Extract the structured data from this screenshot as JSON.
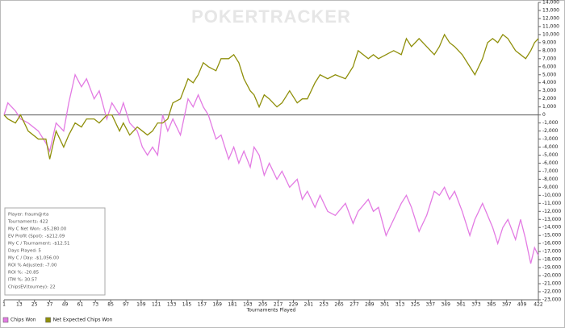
{
  "chart_data": {
    "type": "line",
    "watermark": "POKERTRACKER",
    "x_label": "Tournaments Played",
    "x": [
      1,
      4,
      10,
      14,
      20,
      28,
      34,
      37,
      42,
      48,
      52,
      57,
      62,
      66,
      72,
      76,
      82,
      86,
      92,
      95,
      100,
      106,
      110,
      114,
      118,
      122,
      126,
      130,
      134,
      140,
      146,
      150,
      154,
      158,
      162,
      168,
      172,
      178,
      182,
      186,
      190,
      195,
      198,
      202,
      206,
      210,
      216,
      220,
      226,
      232,
      236,
      240,
      246,
      250,
      256,
      262,
      270,
      276,
      280,
      288,
      292,
      296,
      302,
      308,
      314,
      318,
      322,
      328,
      334,
      340,
      344,
      348,
      352,
      356,
      362,
      368,
      372,
      378,
      382,
      386,
      390,
      394,
      398,
      404,
      408,
      412,
      416,
      419,
      422
    ],
    "series": [
      {
        "name": "Chips Won",
        "color": "#e37be3",
        "values": [
          0,
          1500,
          500,
          -500,
          -1000,
          -2000,
          -3500,
          -4500,
          -1000,
          -2000,
          1500,
          5000,
          3500,
          4500,
          2000,
          3000,
          -500,
          1500,
          0,
          1500,
          -1000,
          -2000,
          -4000,
          -5000,
          -4000,
          -5000,
          0,
          -2000,
          -500,
          -2500,
          2000,
          1000,
          2500,
          1000,
          0,
          -3000,
          -2500,
          -5500,
          -4000,
          -6000,
          -4500,
          -6500,
          -4000,
          -5000,
          -7500,
          -6000,
          -8000,
          -7000,
          -9000,
          -8000,
          -10500,
          -9500,
          -11500,
          -10000,
          -12000,
          -12500,
          -11000,
          -13500,
          -12000,
          -10500,
          -12000,
          -11500,
          -15000,
          -13000,
          -11000,
          -10000,
          -11500,
          -14500,
          -12500,
          -9500,
          -10000,
          -9000,
          -10500,
          -9500,
          -12000,
          -15000,
          -13000,
          -11000,
          -12500,
          -14000,
          -16000,
          -14000,
          -13000,
          -15500,
          -13000,
          -15500,
          -18500,
          -16500,
          -17500
        ]
      },
      {
        "name": "Net Expected Chips Won",
        "color": "#8f8f0a",
        "values": [
          0,
          -500,
          -1000,
          0,
          -2000,
          -3000,
          -3000,
          -5500,
          -2000,
          -4000,
          -2500,
          -1000,
          -1500,
          -500,
          -500,
          -1000,
          0,
          0,
          -2000,
          -1000,
          -2500,
          -1500,
          -2000,
          -2500,
          -2000,
          -1000,
          -1000,
          -500,
          1500,
          2000,
          4500,
          4000,
          5000,
          6500,
          6000,
          5500,
          7000,
          7000,
          7500,
          6500,
          4500,
          3000,
          2500,
          1000,
          2500,
          2000,
          1000,
          1500,
          3000,
          1500,
          2000,
          2000,
          4000,
          5000,
          4500,
          5000,
          4500,
          6000,
          8000,
          7000,
          7500,
          7000,
          7500,
          8000,
          7500,
          9500,
          8500,
          9500,
          8500,
          7500,
          8500,
          10000,
          9000,
          8500,
          7500,
          6000,
          5000,
          7000,
          9000,
          9500,
          9000,
          10000,
          9500,
          8000,
          7500,
          7000,
          8000,
          9000,
          9500
        ]
      }
    ],
    "xlim": [
      1,
      422
    ],
    "xticks": [
      1,
      13,
      25,
      37,
      49,
      61,
      73,
      85,
      97,
      109,
      121,
      133,
      145,
      157,
      169,
      181,
      193,
      205,
      217,
      229,
      241,
      253,
      265,
      277,
      289,
      301,
      313,
      325,
      337,
      349,
      361,
      373,
      385,
      397,
      409,
      422
    ],
    "ylim": [
      -23000,
      14000
    ],
    "yticks": [
      {
        "value": 14000,
        "label": "14,000"
      },
      {
        "value": 13000,
        "label": "13,000"
      },
      {
        "value": 12000,
        "label": "12,000"
      },
      {
        "value": 11000,
        "label": "11,000"
      },
      {
        "value": 10000,
        "label": "10,000"
      },
      {
        "value": 9000,
        "label": "9,000"
      },
      {
        "value": 8000,
        "label": "8,000"
      },
      {
        "value": 7000,
        "label": "7,000"
      },
      {
        "value": 6000,
        "label": "6,000"
      },
      {
        "value": 5000,
        "label": "5,000"
      },
      {
        "value": 4000,
        "label": "4,000"
      },
      {
        "value": 3000,
        "label": "3,000"
      },
      {
        "value": 2000,
        "label": "2,000"
      },
      {
        "value": 1000,
        "label": "1,000"
      },
      0,
      {
        "value": -1000,
        "label": "-1,000"
      },
      {
        "value": -2000,
        "label": "-2,000"
      },
      {
        "value": -3000,
        "label": "-3,000"
      },
      {
        "value": -4000,
        "label": "-4,000"
      },
      {
        "value": -5000,
        "label": "-5,000"
      },
      {
        "value": -6000,
        "label": "-6,000"
      },
      {
        "value": -7000,
        "label": "-7,000"
      },
      {
        "value": -8000,
        "label": "-8,000"
      },
      {
        "value": -9000,
        "label": "-9,000"
      },
      {
        "value": -10000,
        "label": "-10,000"
      },
      {
        "value": -11000,
        "label": "-11,000"
      },
      {
        "value": -12000,
        "label": "-12,000"
      },
      {
        "value": -13000,
        "label": "-13,000"
      },
      {
        "value": -14000,
        "label": "-14,000"
      },
      {
        "value": -15000,
        "label": "-15,000"
      },
      {
        "value": -16000,
        "label": "-16,000"
      },
      {
        "value": -17000,
        "label": "-17,000"
      },
      {
        "value": -18000,
        "label": "-18,000"
      },
      {
        "value": -19000,
        "label": "-19,000"
      },
      {
        "value": -20000,
        "label": "-20,000"
      },
      {
        "value": -21000,
        "label": "-21,000"
      },
      {
        "value": -22000,
        "label": "-22,000"
      },
      {
        "value": -23000,
        "label": "-23,000"
      }
    ],
    "legend_position": "bottom-left",
    "stats": [
      "Player: fraum@rta",
      "Tournaments: 422",
      "My C Net Won: -$5,280.00",
      "EV Profit (Spot): -$212.09",
      "My C / Tournament: -$12.51",
      "Days Played: 5",
      "My C / Day: -$1,056.00",
      "ROI % Adjusted: -7.00",
      "ROI %: -20.85",
      "ITM %: 30.57",
      "ChipsEV(tourney): 22"
    ]
  }
}
